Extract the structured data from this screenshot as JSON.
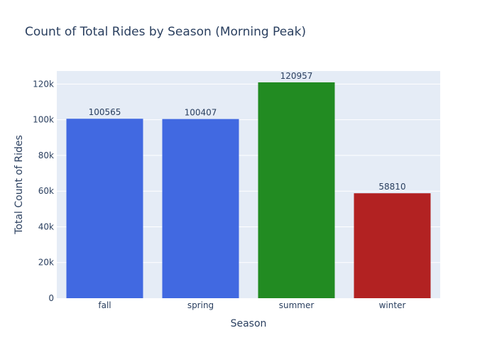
{
  "chart_data": {
    "type": "bar",
    "title": "Count of Total Rides by Season (Morning Peak)",
    "xlabel": "Season",
    "ylabel": "Total Count of Rides",
    "categories": [
      "fall",
      "spring",
      "summer",
      "winter"
    ],
    "values": [
      100565,
      100407,
      120957,
      58810
    ],
    "data_labels": [
      "100565",
      "100407",
      "120957",
      "58810"
    ],
    "bar_colors": [
      "#4169e1",
      "#4169e1",
      "#228b22",
      "#b22222"
    ],
    "ylim": [
      0,
      127320
    ],
    "yticks": [
      0,
      20000,
      40000,
      60000,
      80000,
      100000,
      120000
    ],
    "ytick_labels": [
      "0",
      "20k",
      "40k",
      "60k",
      "80k",
      "100k",
      "120k"
    ],
    "grid": true,
    "plot_background": "#e5ecf6",
    "grid_color": "#ffffff"
  }
}
